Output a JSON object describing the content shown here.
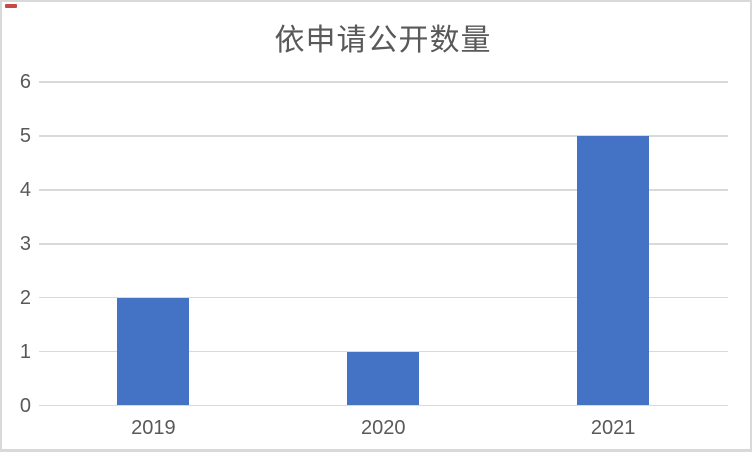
{
  "chart_data": {
    "type": "bar",
    "title": "依申请公开数量",
    "categories": [
      "2019",
      "2020",
      "2021"
    ],
    "values": [
      2,
      1,
      5
    ],
    "ylim": [
      0,
      6
    ],
    "yticks": [
      0,
      1,
      2,
      3,
      4,
      5,
      6
    ],
    "xlabel": "",
    "ylabel": "",
    "grid": true,
    "legend_position": "none"
  },
  "colors": {
    "bar": "#4472C4",
    "gridline": "#D9D9D9",
    "frame_border": "#D9D9D9",
    "text": "#595959",
    "title_text": "#595959",
    "background": "#FFFFFF",
    "corner_artifact": "#C94A44"
  },
  "decor": {
    "corner_mark": "red-dash-artifact"
  }
}
